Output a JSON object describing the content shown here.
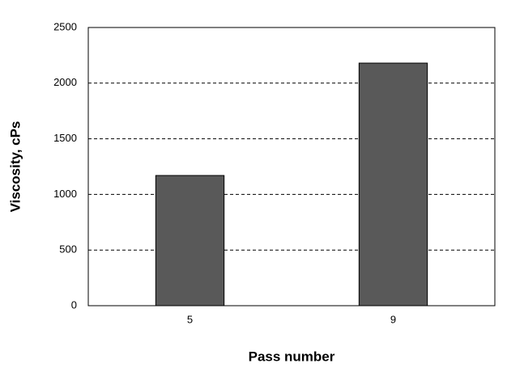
{
  "chart_data": {
    "type": "bar",
    "x_label": "Pass number",
    "y_label": "Viscosity, cPs",
    "categories": [
      "5",
      "9"
    ],
    "values": [
      1170,
      2180
    ],
    "color": "#595959",
    "ylim": [
      0,
      2500
    ],
    "yticks": [
      0,
      500,
      1000,
      1500,
      2000,
      2500
    ],
    "grid": true
  }
}
